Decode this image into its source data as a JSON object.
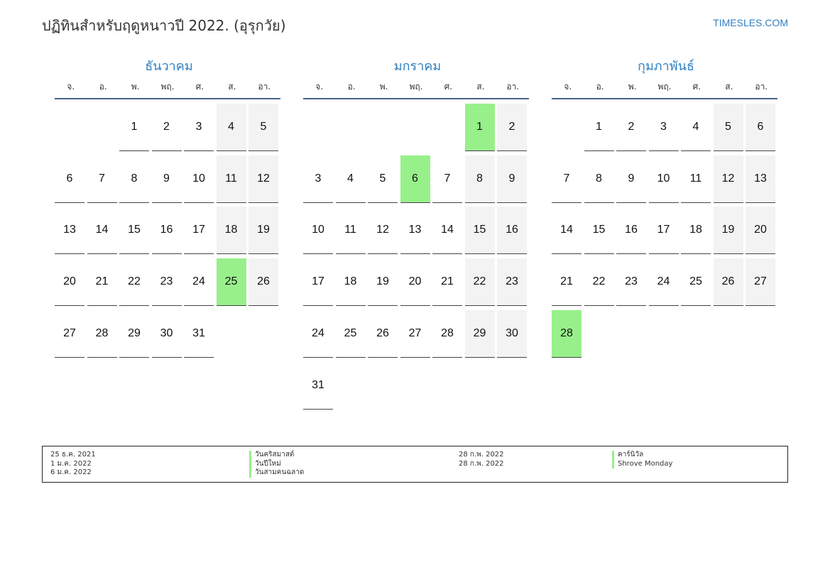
{
  "header": {
    "title": "ปฏิทินสำหรับฤดูหนาวปี 2022. (อุรุกวัย)",
    "brand": "TIMESLES.COM"
  },
  "weekdays": [
    "จ.",
    "อ.",
    "พ.",
    "พฤ.",
    "ศ.",
    "ส.",
    "อา."
  ],
  "colors": {
    "accent": "#2f7fc1",
    "holiday": "#98f08a",
    "weekend": "#f3f3f3",
    "rule": "#46648a"
  },
  "months": [
    {
      "name": "ธันวาคม",
      "start_offset": 2,
      "days": 31,
      "holidays": [
        25
      ]
    },
    {
      "name": "มกราคม",
      "start_offset": 5,
      "days": 31,
      "holidays": [
        1,
        6
      ]
    },
    {
      "name": "กุมภาพันธ์",
      "start_offset": 1,
      "days": 28,
      "holidays": [
        28
      ]
    }
  ],
  "legend": {
    "left": [
      {
        "date": "25 ธ.ค. 2021",
        "name": "วันคริสมาสต์"
      },
      {
        "date": "1 ม.ค. 2022",
        "name": "วันปีใหม่"
      },
      {
        "date": "6 ม.ค. 2022",
        "name": "วันสามคนฉลาด"
      }
    ],
    "right": [
      {
        "date": "28 ก.พ. 2022",
        "name": "คาร์นิวัล"
      },
      {
        "date": "28 ก.พ. 2022",
        "name": "Shrove Monday"
      }
    ]
  }
}
